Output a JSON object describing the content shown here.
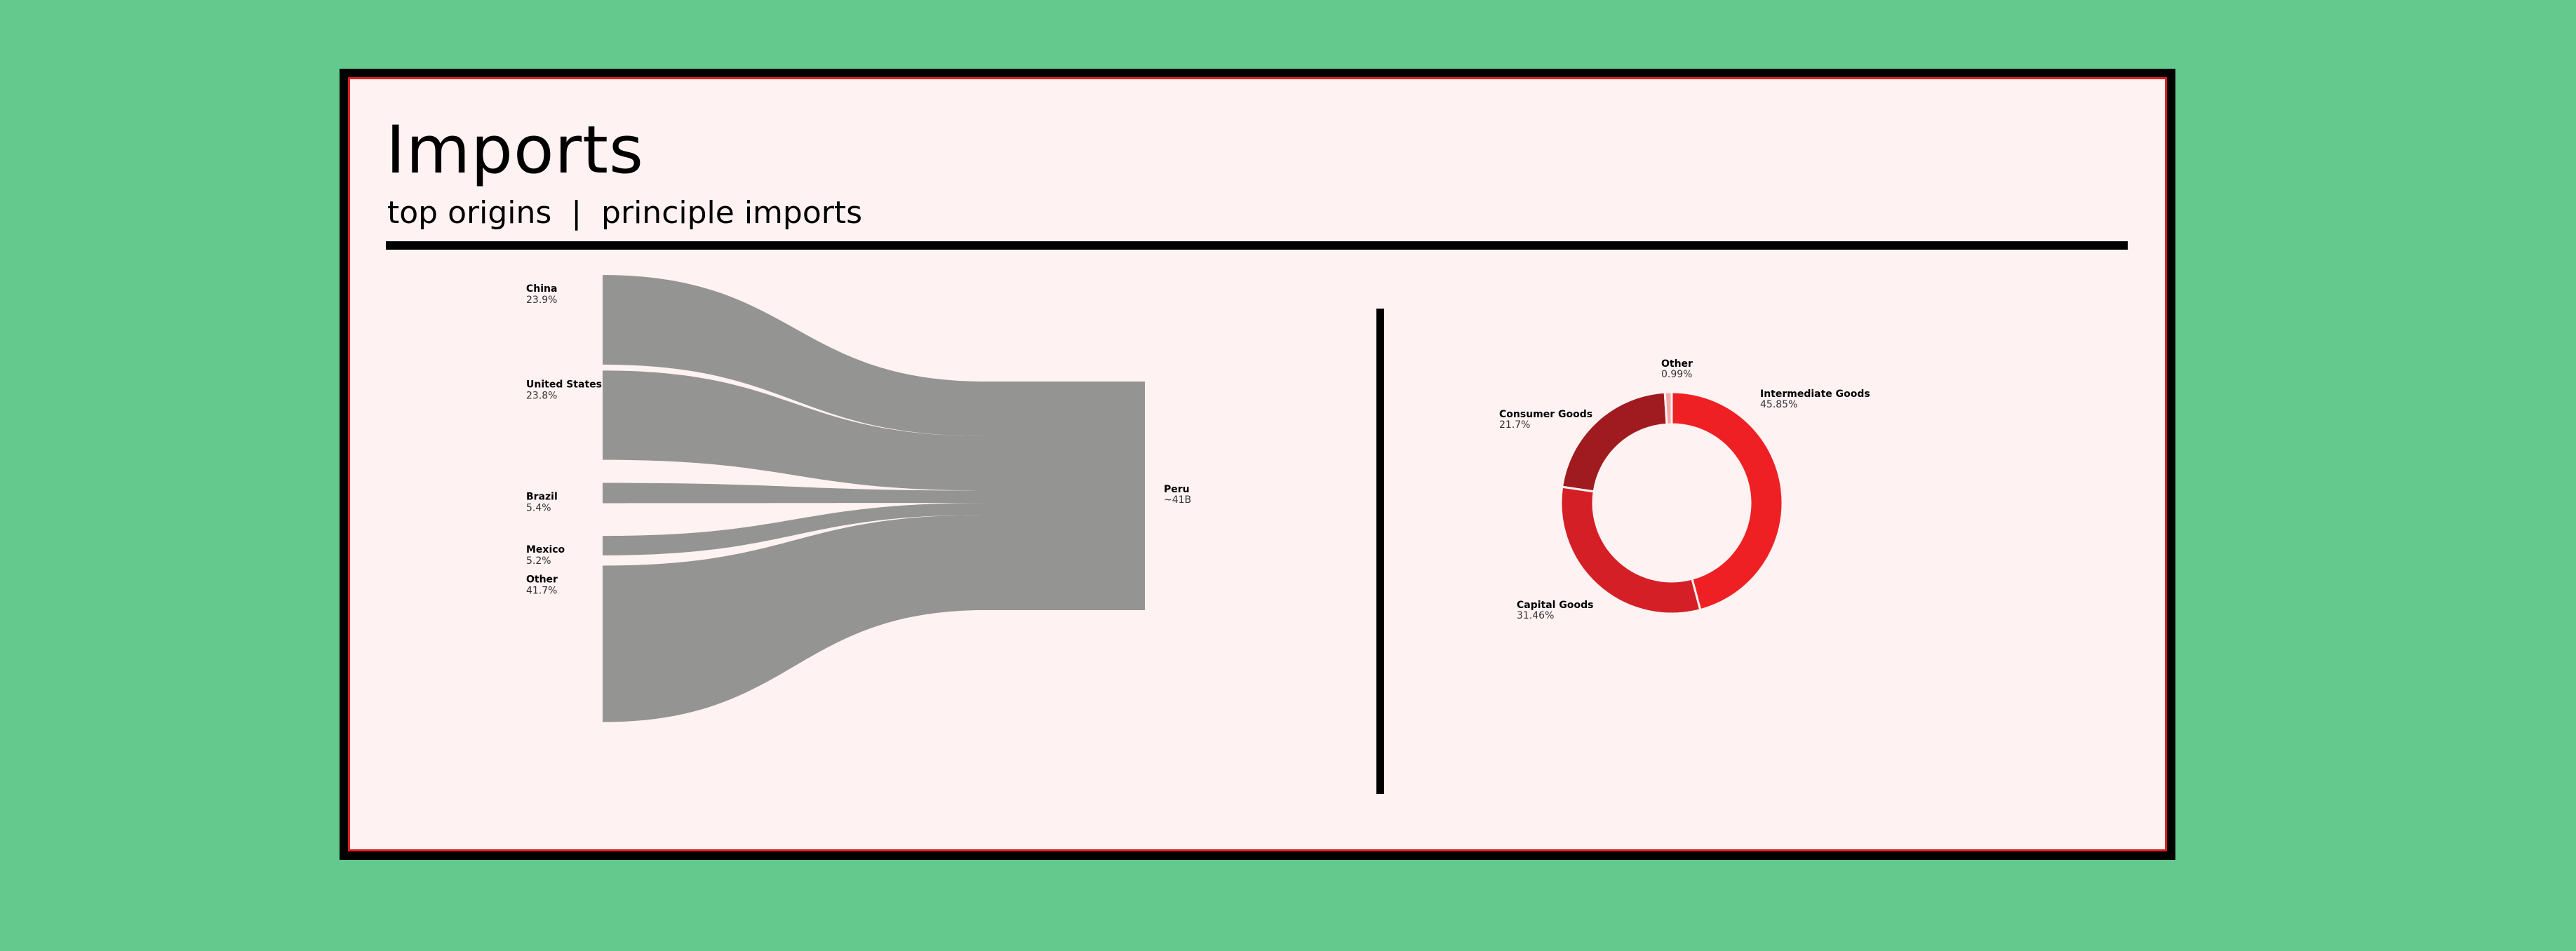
{
  "header": {
    "title": "Imports",
    "subtitle": "top origins  |  principle imports"
  },
  "chart_data": [
    {
      "type": "sankey",
      "target": {
        "name": "Peru",
        "value_label": "~41B"
      },
      "flow_color": "#949492",
      "sources": [
        {
          "name": "China",
          "value_label": "23.9%",
          "value": 23.9
        },
        {
          "name": "United States",
          "value_label": "23.8%",
          "value": 23.8
        },
        {
          "name": "Brazil",
          "value_label": "5.4%",
          "value": 5.4
        },
        {
          "name": "Mexico",
          "value_label": "5.2%",
          "value": 5.2
        },
        {
          "name": "Other",
          "value_label": "41.7%",
          "value": 41.7
        }
      ]
    },
    {
      "type": "pie",
      "donut": true,
      "slices": [
        {
          "name": "Intermediate Goods",
          "value_label": "45.85%",
          "value": 45.85,
          "color": "#ee2024"
        },
        {
          "name": "Capital Goods",
          "value_label": "31.46%",
          "value": 31.46,
          "color": "#d51f26"
        },
        {
          "name": "Consumer Goods",
          "value_label": "21.7%",
          "value": 21.7,
          "color": "#a01b20"
        },
        {
          "name": "Other",
          "value_label": "0.99%",
          "value": 0.99,
          "color": "#f6a8a8"
        }
      ]
    }
  ]
}
